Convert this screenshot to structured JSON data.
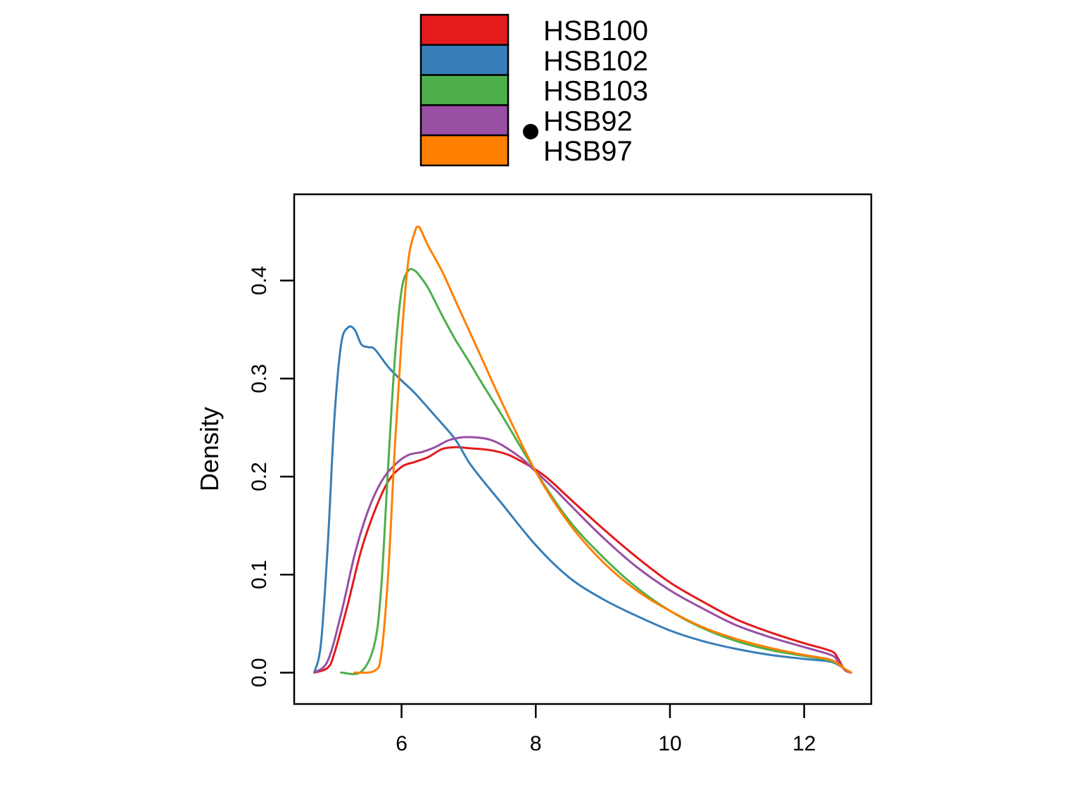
{
  "chart_data": {
    "type": "line",
    "title": "",
    "xlabel": "",
    "ylabel": "Density",
    "xlim": [
      4.4,
      13.0
    ],
    "ylim": [
      -0.032,
      0.488
    ],
    "x_ticks": [
      6,
      8,
      10,
      12
    ],
    "x_tick_labels": [
      "6",
      "8",
      "10",
      "12"
    ],
    "y_ticks": [
      0.0,
      0.1,
      0.2,
      0.3,
      0.4
    ],
    "y_tick_labels": [
      "0.0",
      "0.1",
      "0.2",
      "0.3",
      "0.4"
    ],
    "grid": false,
    "legend_position": "top-center",
    "series": [
      {
        "name": "HSB100",
        "color": "#E41A1C",
        "points": [
          [
            4.7,
            0.0
          ],
          [
            4.9,
            0.005
          ],
          [
            5.0,
            0.02
          ],
          [
            5.2,
            0.07
          ],
          [
            5.4,
            0.125
          ],
          [
            5.6,
            0.165
          ],
          [
            5.8,
            0.195
          ],
          [
            6.0,
            0.21
          ],
          [
            6.2,
            0.215
          ],
          [
            6.4,
            0.22
          ],
          [
            6.6,
            0.228
          ],
          [
            6.8,
            0.23
          ],
          [
            7.0,
            0.229
          ],
          [
            7.2,
            0.228
          ],
          [
            7.4,
            0.226
          ],
          [
            7.6,
            0.222
          ],
          [
            7.8,
            0.215
          ],
          [
            8.0,
            0.207
          ],
          [
            8.2,
            0.197
          ],
          [
            8.5,
            0.178
          ],
          [
            9.0,
            0.147
          ],
          [
            9.5,
            0.118
          ],
          [
            10.0,
            0.092
          ],
          [
            10.5,
            0.072
          ],
          [
            11.0,
            0.054
          ],
          [
            11.5,
            0.041
          ],
          [
            12.0,
            0.03
          ],
          [
            12.4,
            0.022
          ],
          [
            12.5,
            0.015
          ],
          [
            12.6,
            0.003
          ],
          [
            12.7,
            0.0
          ]
        ]
      },
      {
        "name": "HSB102",
        "color": "#377EB8",
        "points": [
          [
            4.7,
            0.0
          ],
          [
            4.8,
            0.03
          ],
          [
            4.9,
            0.13
          ],
          [
            5.0,
            0.26
          ],
          [
            5.1,
            0.335
          ],
          [
            5.2,
            0.352
          ],
          [
            5.3,
            0.35
          ],
          [
            5.4,
            0.335
          ],
          [
            5.5,
            0.332
          ],
          [
            5.6,
            0.33
          ],
          [
            5.8,
            0.312
          ],
          [
            6.0,
            0.298
          ],
          [
            6.2,
            0.285
          ],
          [
            6.5,
            0.262
          ],
          [
            6.8,
            0.238
          ],
          [
            7.0,
            0.215
          ],
          [
            7.2,
            0.197
          ],
          [
            7.5,
            0.172
          ],
          [
            8.0,
            0.13
          ],
          [
            8.5,
            0.097
          ],
          [
            9.0,
            0.075
          ],
          [
            9.5,
            0.058
          ],
          [
            10.0,
            0.043
          ],
          [
            10.5,
            0.032
          ],
          [
            11.0,
            0.024
          ],
          [
            11.5,
            0.018
          ],
          [
            12.0,
            0.014
          ],
          [
            12.4,
            0.011
          ],
          [
            12.6,
            0.004
          ],
          [
            12.7,
            0.0
          ]
        ]
      },
      {
        "name": "HSB103",
        "color": "#4DAF4A",
        "points": [
          [
            5.1,
            0.0
          ],
          [
            5.4,
            0.001
          ],
          [
            5.6,
            0.03
          ],
          [
            5.7,
            0.09
          ],
          [
            5.8,
            0.21
          ],
          [
            5.9,
            0.32
          ],
          [
            6.0,
            0.39
          ],
          [
            6.1,
            0.41
          ],
          [
            6.2,
            0.41
          ],
          [
            6.3,
            0.402
          ],
          [
            6.4,
            0.392
          ],
          [
            6.6,
            0.365
          ],
          [
            6.8,
            0.34
          ],
          [
            7.0,
            0.318
          ],
          [
            7.2,
            0.295
          ],
          [
            7.5,
            0.262
          ],
          [
            8.0,
            0.205
          ],
          [
            8.5,
            0.155
          ],
          [
            9.0,
            0.118
          ],
          [
            9.5,
            0.087
          ],
          [
            10.0,
            0.063
          ],
          [
            10.5,
            0.045
          ],
          [
            11.0,
            0.032
          ],
          [
            11.5,
            0.023
          ],
          [
            12.0,
            0.017
          ],
          [
            12.4,
            0.012
          ],
          [
            12.6,
            0.004
          ],
          [
            12.7,
            0.0
          ]
        ]
      },
      {
        "name": "HSB92",
        "color": "#984EA3",
        "points": [
          [
            4.7,
            0.0
          ],
          [
            4.9,
            0.012
          ],
          [
            5.1,
            0.06
          ],
          [
            5.3,
            0.12
          ],
          [
            5.5,
            0.165
          ],
          [
            5.7,
            0.195
          ],
          [
            5.9,
            0.212
          ],
          [
            6.1,
            0.222
          ],
          [
            6.3,
            0.225
          ],
          [
            6.5,
            0.23
          ],
          [
            6.7,
            0.237
          ],
          [
            6.9,
            0.24
          ],
          [
            7.1,
            0.24
          ],
          [
            7.3,
            0.238
          ],
          [
            7.5,
            0.232
          ],
          [
            7.8,
            0.218
          ],
          [
            8.0,
            0.205
          ],
          [
            8.3,
            0.186
          ],
          [
            8.5,
            0.172
          ],
          [
            9.0,
            0.138
          ],
          [
            9.5,
            0.108
          ],
          [
            10.0,
            0.084
          ],
          [
            10.5,
            0.065
          ],
          [
            11.0,
            0.048
          ],
          [
            11.5,
            0.036
          ],
          [
            12.0,
            0.026
          ],
          [
            12.4,
            0.018
          ],
          [
            12.5,
            0.012
          ],
          [
            12.6,
            0.003
          ],
          [
            12.7,
            0.0
          ]
        ]
      },
      {
        "name": "HSB97",
        "color": "#FF7F00",
        "points": [
          [
            5.3,
            0.0
          ],
          [
            5.6,
            0.002
          ],
          [
            5.7,
            0.02
          ],
          [
            5.8,
            0.1
          ],
          [
            5.9,
            0.23
          ],
          [
            6.0,
            0.34
          ],
          [
            6.1,
            0.42
          ],
          [
            6.2,
            0.45
          ],
          [
            6.25,
            0.455
          ],
          [
            6.3,
            0.45
          ],
          [
            6.4,
            0.435
          ],
          [
            6.6,
            0.41
          ],
          [
            6.8,
            0.38
          ],
          [
            7.0,
            0.35
          ],
          [
            7.2,
            0.32
          ],
          [
            7.5,
            0.275
          ],
          [
            8.0,
            0.205
          ],
          [
            8.5,
            0.152
          ],
          [
            9.0,
            0.113
          ],
          [
            9.5,
            0.084
          ],
          [
            10.0,
            0.063
          ],
          [
            10.5,
            0.046
          ],
          [
            11.0,
            0.034
          ],
          [
            11.5,
            0.025
          ],
          [
            12.0,
            0.018
          ],
          [
            12.4,
            0.013
          ],
          [
            12.6,
            0.004
          ],
          [
            12.7,
            0.0
          ]
        ]
      }
    ]
  }
}
